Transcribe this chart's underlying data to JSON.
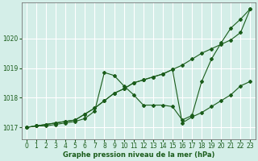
{
  "xlabel": "Graphe pression niveau de la mer (hPa)",
  "bg_color": "#d4eee8",
  "plot_bg_color": "#d4eee8",
  "grid_color": "#ffffff",
  "line_color": "#1a5c1a",
  "xlim": [
    -0.5,
    23.5
  ],
  "ylim": [
    1016.6,
    1021.2
  ],
  "yticks": [
    1017,
    1018,
    1019,
    1020
  ],
  "xticks": [
    0,
    1,
    2,
    3,
    4,
    5,
    6,
    7,
    8,
    9,
    10,
    11,
    12,
    13,
    14,
    15,
    16,
    17,
    18,
    19,
    20,
    21,
    22,
    23
  ],
  "series": [
    [
      1017.0,
      1017.05,
      1017.05,
      1017.1,
      1017.15,
      1017.2,
      1017.3,
      1017.55,
      1018.85,
      1018.75,
      1018.4,
      1018.1,
      1017.75,
      1017.75,
      1017.75,
      1017.7,
      1017.25,
      1017.4,
      1018.55,
      1019.3,
      1019.85,
      1020.35,
      1020.65,
      1021.0
    ],
    [
      1017.0,
      1017.05,
      1017.1,
      1017.15,
      1017.2,
      1017.25,
      1017.45,
      1017.65,
      1017.9,
      1018.15,
      1018.3,
      1018.5,
      1018.6,
      1018.7,
      1018.8,
      1018.95,
      1019.1,
      1019.3,
      1019.5,
      1019.65,
      1019.8,
      1019.95,
      1020.2,
      1021.0
    ],
    [
      1017.0,
      1017.05,
      1017.1,
      1017.15,
      1017.2,
      1017.25,
      1017.45,
      1017.65,
      1017.9,
      1018.15,
      1018.3,
      1018.5,
      1018.6,
      1018.7,
      1018.8,
      1018.95,
      1017.15,
      1017.35,
      1017.5,
      1017.7,
      1017.9,
      1018.1,
      1018.4,
      1018.55
    ]
  ],
  "figsize": [
    3.2,
    2.0
  ],
  "dpi": 100,
  "title_fontsize": 6,
  "tick_fontsize": 5.5,
  "xlabel_fontsize": 6
}
